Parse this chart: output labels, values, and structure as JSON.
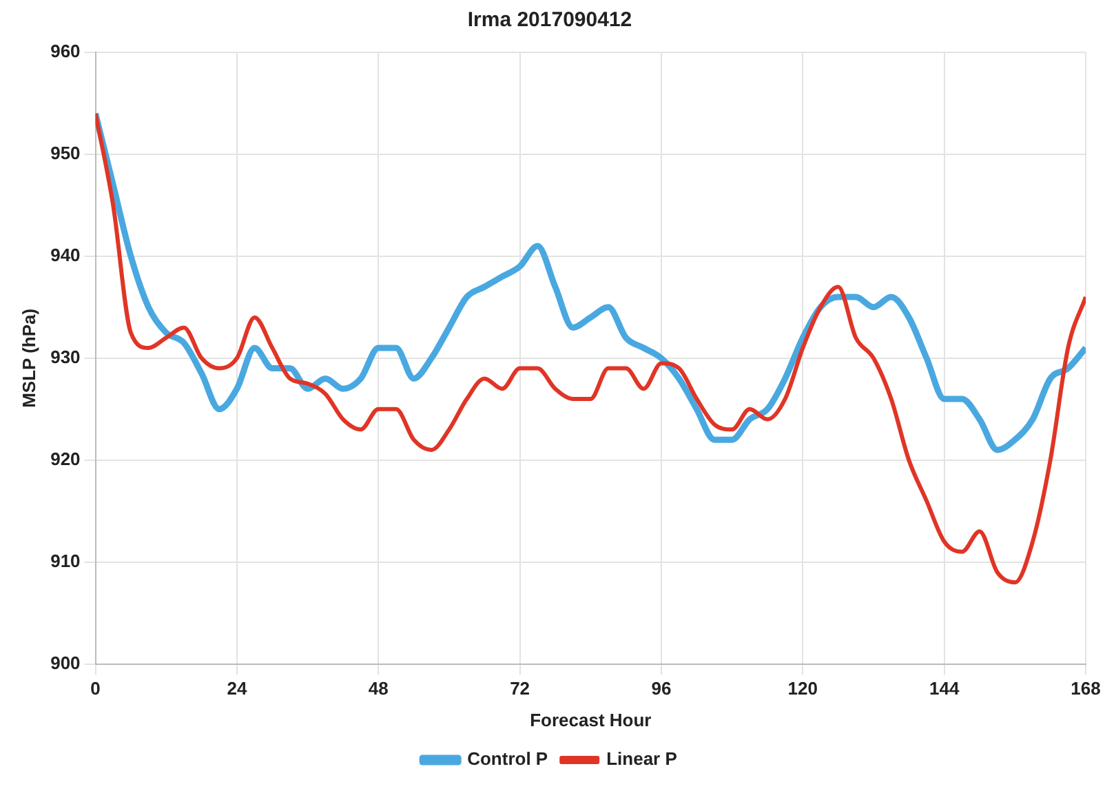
{
  "chart_data": {
    "type": "line",
    "title": "Irma 2017090412",
    "xlabel": "Forecast Hour",
    "ylabel": "MSLP (hPa)",
    "x": [
      0,
      3,
      6,
      9,
      12,
      15,
      18,
      21,
      24,
      27,
      30,
      33,
      36,
      39,
      42,
      45,
      48,
      51,
      54,
      57,
      60,
      63,
      66,
      69,
      72,
      75,
      78,
      81,
      84,
      87,
      90,
      93,
      96,
      99,
      102,
      105,
      108,
      111,
      114,
      117,
      120,
      123,
      126,
      129,
      132,
      135,
      138,
      141,
      144,
      147,
      150,
      153,
      156,
      159,
      162,
      165,
      168
    ],
    "series": [
      {
        "name": "Control P",
        "color": "#4aa8e0",
        "values": [
          954,
          947,
          940,
          935,
          932.5,
          931.5,
          928.5,
          925,
          927,
          931,
          929,
          929,
          927,
          928,
          927,
          928,
          931,
          931,
          928,
          930,
          933,
          936,
          937,
          938,
          939,
          941,
          937,
          933,
          934,
          935,
          932,
          931,
          930,
          928,
          925,
          922,
          922,
          924,
          925,
          928,
          932,
          935,
          936,
          936,
          935,
          936,
          934,
          930,
          926,
          926,
          924,
          921,
          922,
          924,
          928,
          929,
          931
        ]
      },
      {
        "name": "Linear P",
        "color": "#e03526",
        "values": [
          954,
          945,
          932.5,
          931,
          932,
          933,
          930,
          929,
          930,
          934,
          931,
          928,
          927.5,
          926.5,
          924,
          923,
          925,
          925,
          922,
          921,
          923,
          926,
          928,
          927,
          929,
          929,
          927,
          926,
          926,
          929,
          929,
          927,
          929.5,
          929,
          926,
          923.5,
          923,
          925,
          924,
          926,
          931,
          935,
          937,
          932,
          930,
          926,
          920,
          916,
          912,
          911,
          913,
          909,
          908,
          912,
          920,
          931,
          936
        ]
      }
    ],
    "xlim": [
      0,
      168
    ],
    "xticks": [
      0,
      24,
      48,
      72,
      96,
      120,
      144,
      168
    ],
    "ylim": [
      900,
      960
    ],
    "yticks": [
      900,
      910,
      920,
      930,
      940,
      950,
      960
    ],
    "grid": true,
    "legend": "bottom",
    "marker": "none",
    "line_style": "solid"
  }
}
